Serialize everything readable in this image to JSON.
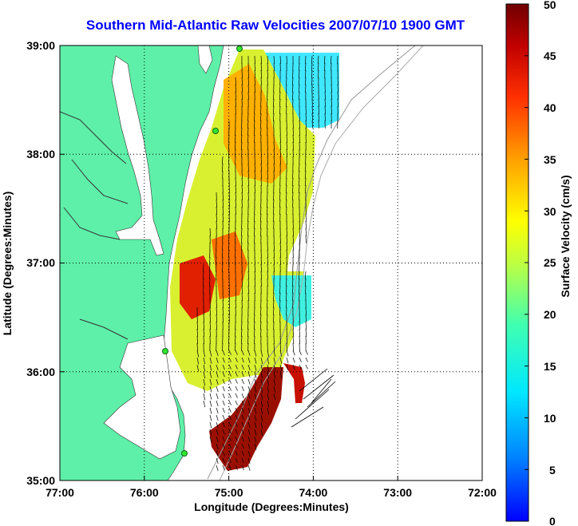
{
  "title": "Southern Mid-Atlantic Raw Velocities 2007/07/10 1900 GMT",
  "x_axis": {
    "label": "Longitude (Degrees:Minutes)",
    "ticks": [
      "77:00",
      "76:00",
      "75:00",
      "74:00",
      "73:00",
      "72:00"
    ]
  },
  "y_axis": {
    "label": "Latitude (Degrees:Minutes)",
    "ticks": [
      "39:00",
      "38:00",
      "37:00",
      "36:00",
      "35:00"
    ]
  },
  "colorbar": {
    "label": "Surface Velocity (cm/s)",
    "ticks": [
      "50",
      "45",
      "40",
      "35",
      "30",
      "25",
      "20",
      "15",
      "10",
      "5",
      "0"
    ],
    "min": 0,
    "max": 50
  },
  "colors": {
    "land": "#5ef0a8",
    "ocean": "#ffffff",
    "title": "#0000ff",
    "arrows": "#000000",
    "stations": "#33e633",
    "bathymetry": "#999999"
  },
  "map_style": {
    "grid": "dotted",
    "lon_range": [
      -77,
      -72
    ],
    "lat_range": [
      35,
      39
    ]
  }
}
